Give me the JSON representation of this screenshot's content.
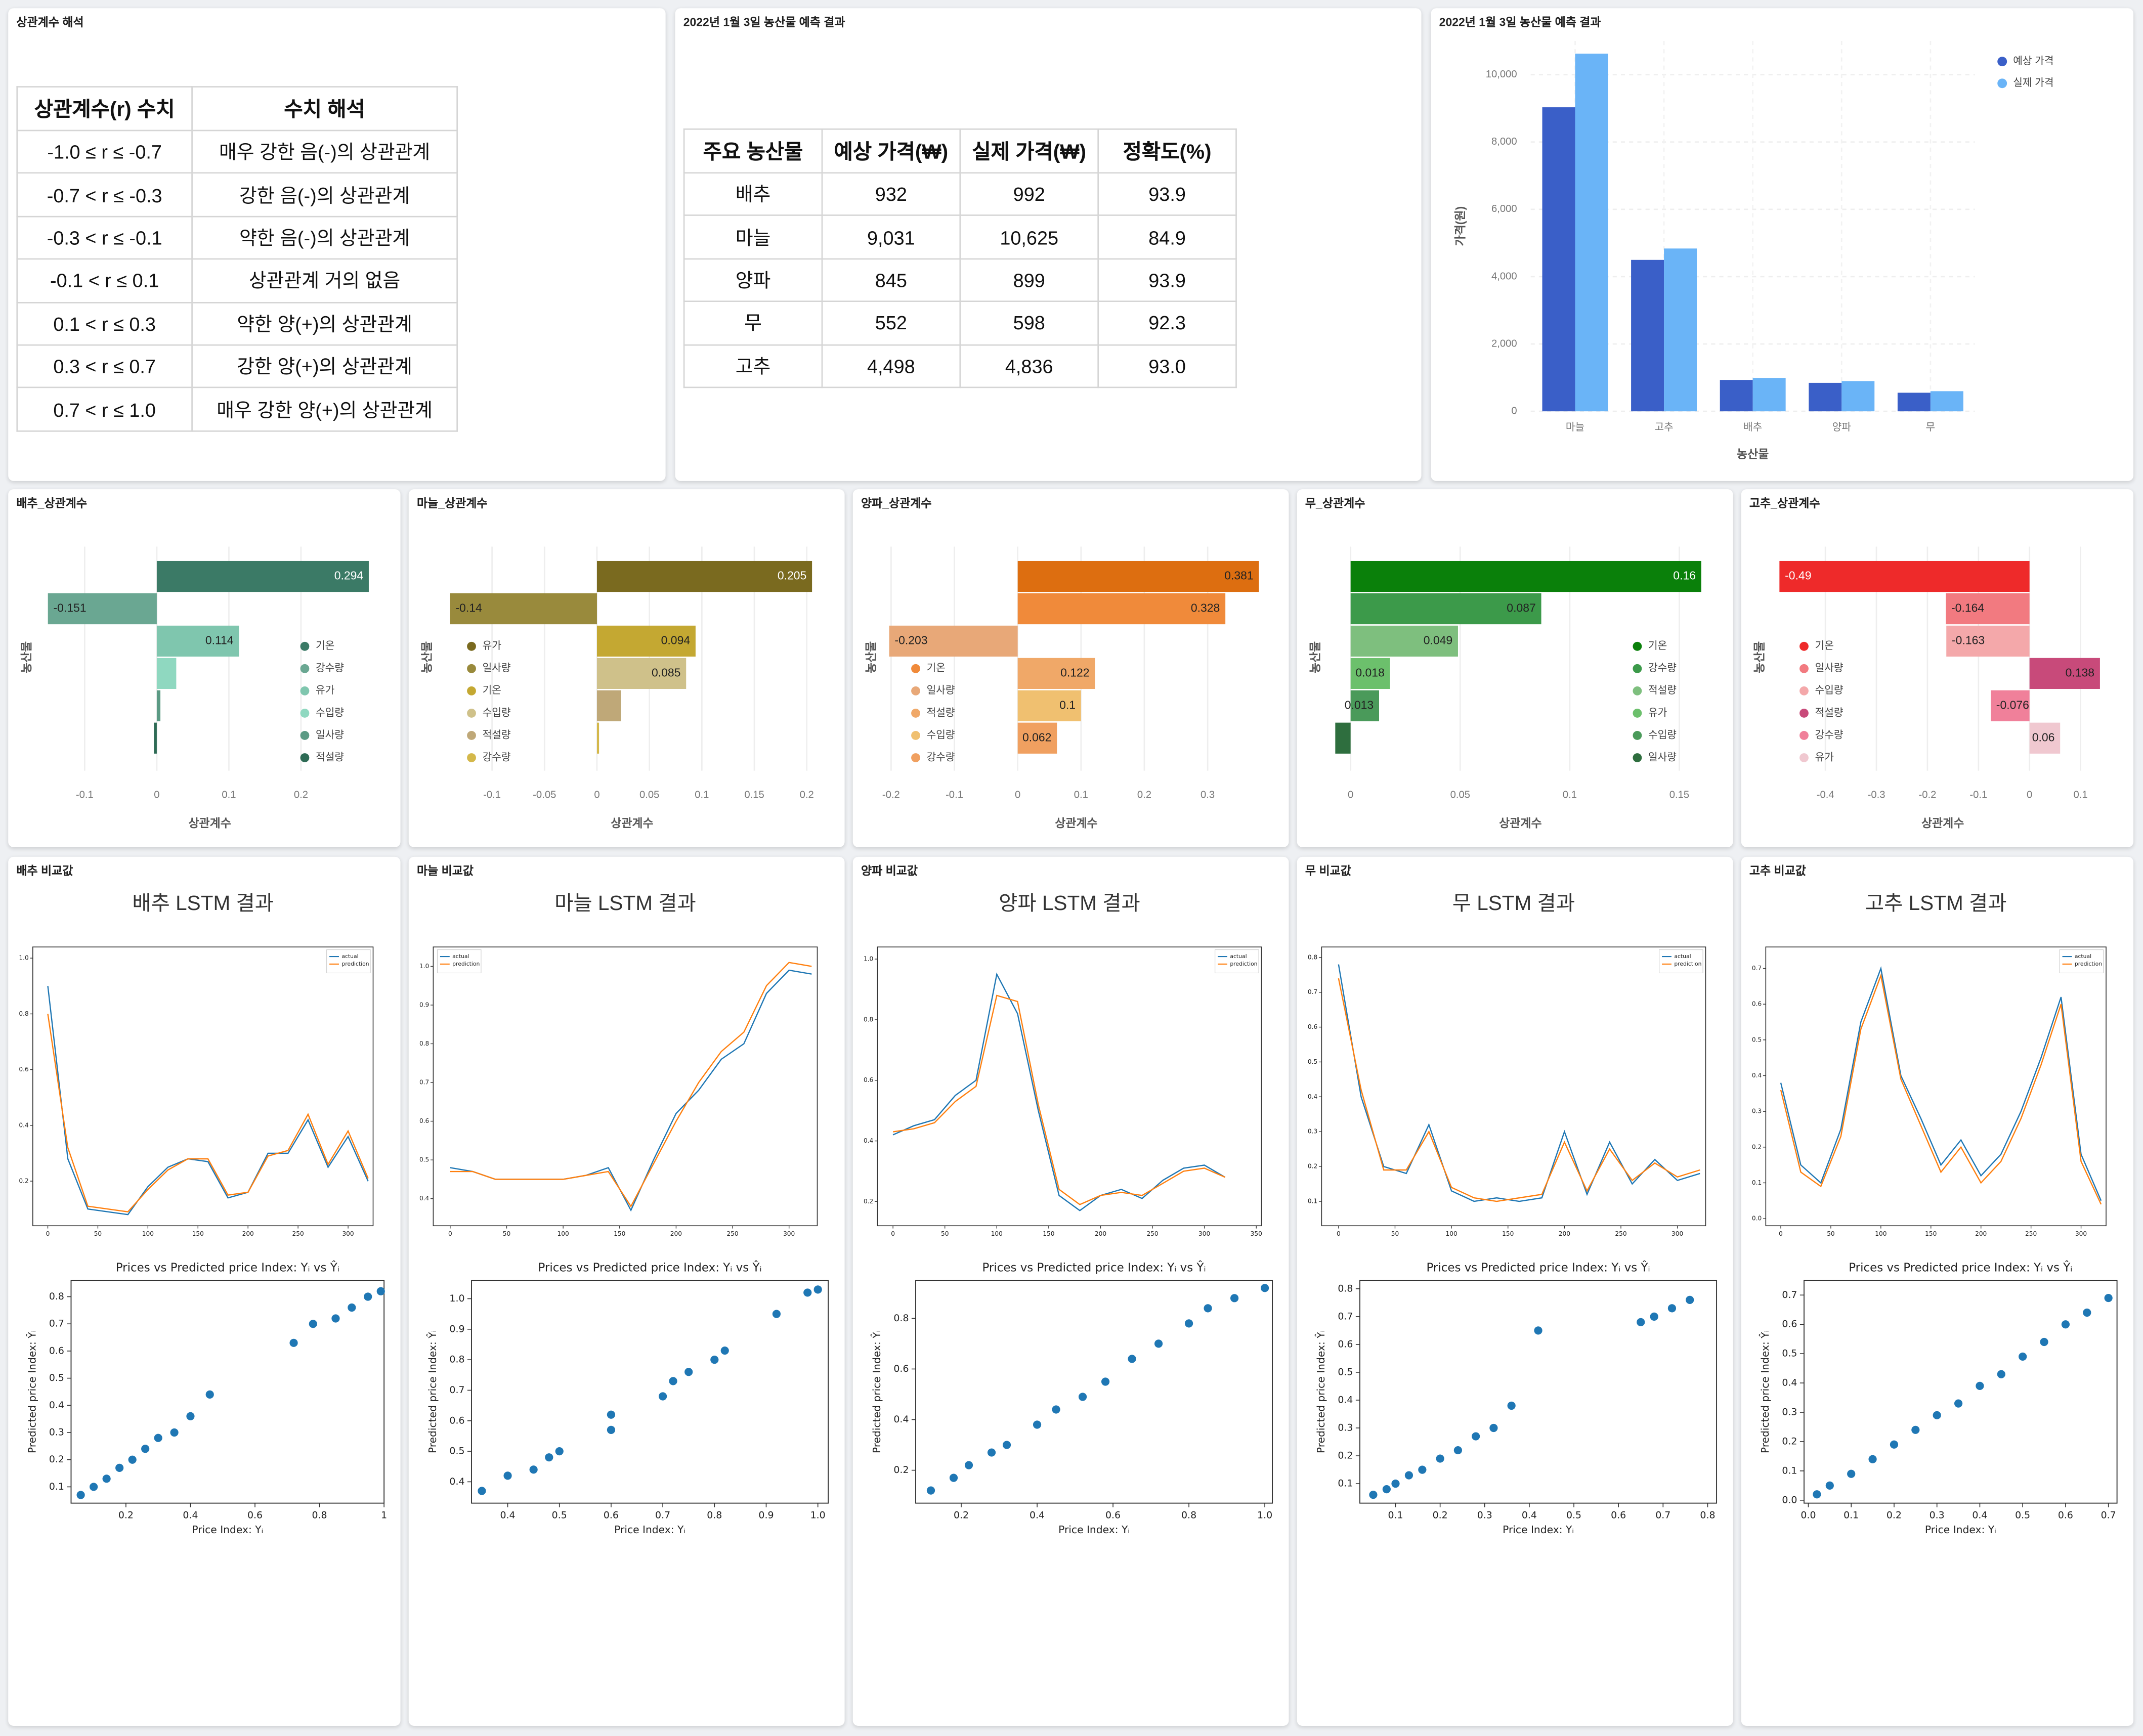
{
  "tables": [
    {
      "title": "상관계수 해석",
      "header": [
        "상관계수(r) 수치",
        "수치 해석"
      ],
      "rows": [
        [
          "-1.0 ≤ r ≤ -0.7",
          "매우 강한 음(-)의 상관관계"
        ],
        [
          "-0.7 < r ≤ -0.3",
          "강한 음(-)의 상관관계"
        ],
        [
          "-0.3 < r ≤ -0.1",
          "약한 음(-)의 상관관계"
        ],
        [
          "-0.1 < r ≤ 0.1",
          "상관관계 거의 없음"
        ],
        [
          "0.1 < r ≤ 0.3",
          "약한 양(+)의 상관관계"
        ],
        [
          "0.3 < r ≤ 0.7",
          "강한 양(+)의 상관관계"
        ],
        [
          "0.7 < r ≤ 1.0",
          "매우 강한 양(+)의 상관관계"
        ]
      ]
    },
    {
      "title": "2022년 1월 3일 농산물 예측 결과",
      "header": [
        "주요 농산물",
        "예상 가격(₩)",
        "실제 가격(₩)",
        "정확도(%)"
      ],
      "rows": [
        [
          "배추",
          "932",
          "992",
          "93.9"
        ],
        [
          "마늘",
          "9,031",
          "10,625",
          "84.9"
        ],
        [
          "양파",
          "845",
          "899",
          "93.9"
        ],
        [
          "무",
          "552",
          "598",
          "92.3"
        ],
        [
          "고추",
          "4,498",
          "4,836",
          "93.0"
        ]
      ]
    }
  ],
  "chart_data": [
    {
      "type": "bar",
      "title": "2022년 1월 3일 농산물 예측 결과",
      "x_label": "농산물",
      "y_label": "가격(원)",
      "categories": [
        "마늘",
        "고추",
        "배추",
        "양파",
        "무"
      ],
      "series": [
        {
          "name": "예상 가격",
          "color": "#3a5fc8",
          "values": [
            9031,
            4498,
            932,
            845,
            552
          ]
        },
        {
          "name": "실제 가격",
          "color": "#6ab4f7",
          "values": [
            10625,
            4836,
            992,
            899,
            598
          ]
        }
      ],
      "ylim": [
        0,
        11000
      ],
      "yticks": [
        0,
        {
          "value": 2000,
          "label": "2,000"
        },
        {
          "value": 4000,
          "label": "4,000"
        },
        {
          "value": 6000,
          "label": "6,000"
        },
        {
          "value": 8000,
          "label": "8,000"
        },
        {
          "value": 10000,
          "label": "10,000"
        }
      ],
      "grid": true,
      "legend": "top right"
    },
    {
      "type": "bar",
      "orientation": "horizontal",
      "title": "배추_상관계수",
      "x_label": "상관계수",
      "y_label": "농산물",
      "legend": "center right",
      "categories": [
        "기온",
        "강수량",
        "유가",
        "수입량",
        "일사량",
        "적설량"
      ],
      "values": [
        0.294,
        -0.151,
        0.114,
        0.027,
        0.005,
        -0.004
      ],
      "value_labels": [
        "0.294",
        "-0.151",
        "0.114",
        null,
        null,
        null
      ],
      "colors": [
        "#3b7a66",
        "#6aa792",
        "#7fc6ae",
        "#8fd8c0",
        "#5b9a84",
        "#2e6b55"
      ],
      "xlim": [
        -0.153,
        0.3
      ],
      "xticks": [
        -0.1,
        0,
        0.1,
        0.2
      ],
      "grid": true
    },
    {
      "type": "bar",
      "orientation": "horizontal",
      "title": "마늘_상관계수",
      "x_label": "상관계수",
      "y_label": "농산물",
      "legend": "center left",
      "categories": [
        "유가",
        "일사량",
        "기온",
        "수입량",
        "적설량",
        "강수량"
      ],
      "values": [
        0.205,
        -0.14,
        0.094,
        0.085,
        0.023,
        0.002
      ],
      "value_labels": [
        "0.205",
        "-0.14",
        "0.094",
        "0.085",
        null,
        null
      ],
      "colors": [
        "#7a6a1f",
        "#998a3c",
        "#c4a832",
        "#cfc18a",
        "#bfa878",
        "#d4b84a"
      ],
      "xlim": [
        -0.143,
        0.21
      ],
      "xticks": [
        -0.1,
        -0.05,
        0,
        0.05,
        0.1,
        0.15,
        0.2
      ],
      "grid": true
    },
    {
      "type": "bar",
      "orientation": "horizontal",
      "title": "양파_상관계수",
      "x_label": "상관계수",
      "y_label": "농산물",
      "legend": "center left",
      "categories": [
        "유가",
        "기온",
        "일사량",
        "적설량",
        "수입량",
        "강수량"
      ],
      "values": [
        0.381,
        0.328,
        -0.203,
        0.122,
        0.1,
        0.062
      ],
      "value_labels": [
        "0.381",
        "0.328",
        "-0.203",
        "0.122",
        "0.1",
        "0.062"
      ],
      "colors": [
        "#dd6e10",
        "#f08a3a",
        "#e8a878",
        "#f0a868",
        "#f0c070",
        "#f0a060"
      ],
      "xlim": [
        -0.2,
        0.385
      ],
      "xticks": [
        -0.2,
        -0.1,
        0,
        0.1,
        0.2,
        0.3
      ],
      "grid": true
    },
    {
      "type": "bar",
      "orientation": "horizontal",
      "title": "무_상관계수",
      "x_label": "상관계수",
      "y_label": "농산물",
      "legend": "center right",
      "categories": [
        "기온",
        "강수량",
        "적설량",
        "유가",
        "수입량",
        "일사량"
      ],
      "values": [
        0.16,
        0.087,
        0.049,
        0.018,
        0.013,
        -0.007
      ],
      "value_labels": [
        "0.16",
        "0.087",
        "0.049",
        "0.018",
        "0.013",
        null
      ],
      "colors": [
        "#0a800a",
        "#3c9a4a",
        "#7ebf7e",
        "#6cc06c",
        "#4a9a5a",
        "#2e6e3e"
      ],
      "xlim": [
        -0.007,
        0.162
      ],
      "xticks": [
        0,
        0.05,
        0.1,
        0.15
      ],
      "grid": true
    },
    {
      "type": "bar",
      "orientation": "horizontal",
      "title": "고추_상관계수",
      "x_label": "상관계수",
      "y_label": "농산물",
      "legend": "center left",
      "categories": [
        "기온",
        "일사량",
        "수입량",
        "적설량",
        "강수량",
        "유가"
      ],
      "values": [
        -0.49,
        -0.164,
        -0.163,
        0.138,
        -0.076,
        0.06
      ],
      "value_labels": [
        "-0.49",
        "-0.164",
        "-0.163",
        "0.138",
        "-0.076",
        "0.06"
      ],
      "colors": [
        "#ee2a2a",
        "#f27a80",
        "#f4a8aa",
        "#c84a7a",
        "#f0809a",
        "#f0c8d0"
      ],
      "xlim": [
        -0.49,
        0.15
      ],
      "xticks": [
        -0.4,
        -0.3,
        -0.2,
        -0.1,
        0,
        0.1
      ],
      "grid": true
    },
    {
      "type": "line",
      "panel_title": "배추 비교값",
      "title": "배추 LSTM 결과",
      "x": [
        0,
        20,
        40,
        60,
        80,
        100,
        120,
        140,
        160,
        180,
        200,
        220,
        240,
        260,
        280,
        300,
        320
      ],
      "series": [
        {
          "name": "actual",
          "color": "#1f77b4",
          "values": [
            0.9,
            0.28,
            0.1,
            0.09,
            0.08,
            0.18,
            0.25,
            0.28,
            0.27,
            0.14,
            0.16,
            0.3,
            0.3,
            0.42,
            0.25,
            0.36,
            0.2
          ]
        },
        {
          "name": "prediction",
          "color": "#ff7f0e",
          "values": [
            0.8,
            0.32,
            0.11,
            0.1,
            0.09,
            0.17,
            0.24,
            0.28,
            0.28,
            0.15,
            0.16,
            0.29,
            0.31,
            0.44,
            0.26,
            0.38,
            0.21
          ]
        }
      ],
      "xlim": [
        -15,
        325
      ],
      "xticks": [
        0,
        50,
        100,
        150,
        200,
        250,
        300
      ],
      "ylim": [
        0.04,
        1.04
      ],
      "yticks": [
        0.2,
        0.4,
        0.6,
        0.8,
        {
          "value": 1,
          "label": "1.0"
        }
      ],
      "legend": "top right"
    },
    {
      "type": "line",
      "panel_title": "마늘 비교값",
      "title": "마늘 LSTM 결과",
      "x": [
        0,
        20,
        40,
        60,
        80,
        100,
        120,
        140,
        160,
        180,
        200,
        220,
        240,
        260,
        280,
        300,
        320
      ],
      "series": [
        {
          "name": "actual",
          "color": "#1f77b4",
          "values": [
            0.48,
            0.47,
            0.45,
            0.45,
            0.45,
            0.45,
            0.46,
            0.48,
            0.37,
            0.5,
            0.62,
            0.68,
            0.76,
            0.8,
            0.93,
            0.99,
            0.98
          ]
        },
        {
          "name": "prediction",
          "color": "#ff7f0e",
          "values": [
            0.47,
            0.47,
            0.45,
            0.45,
            0.45,
            0.45,
            0.46,
            0.47,
            0.38,
            0.49,
            0.6,
            0.7,
            0.78,
            0.83,
            0.95,
            1.01,
            1.0
          ]
        }
      ],
      "xlim": [
        -15,
        325
      ],
      "xticks": [
        0,
        50,
        100,
        150,
        200,
        250,
        300
      ],
      "ylim": [
        0.33,
        1.05
      ],
      "yticks": [
        0.4,
        0.5,
        0.6,
        0.7,
        0.8,
        0.9,
        {
          "value": 1,
          "label": "1.0"
        }
      ],
      "legend": "top left"
    },
    {
      "type": "line",
      "panel_title": "양파 비교값",
      "title": "양파 LSTM 결과",
      "x": [
        0,
        20,
        40,
        60,
        80,
        100,
        120,
        140,
        160,
        180,
        200,
        220,
        240,
        260,
        280,
        300,
        320
      ],
      "series": [
        {
          "name": "actual",
          "color": "#1f77b4",
          "values": [
            0.42,
            0.45,
            0.47,
            0.55,
            0.6,
            0.95,
            0.82,
            0.5,
            0.22,
            0.17,
            0.22,
            0.24,
            0.21,
            0.27,
            0.31,
            0.32,
            0.28
          ]
        },
        {
          "name": "prediction",
          "color": "#ff7f0e",
          "values": [
            0.43,
            0.44,
            0.46,
            0.53,
            0.58,
            0.88,
            0.86,
            0.52,
            0.24,
            0.19,
            0.22,
            0.23,
            0.22,
            0.26,
            0.3,
            0.31,
            0.28
          ]
        }
      ],
      "xlim": [
        -15,
        355
      ],
      "xticks": [
        0,
        50,
        100,
        150,
        200,
        250,
        300,
        350
      ],
      "ylim": [
        0.12,
        1.04
      ],
      "yticks": [
        0.2,
        0.4,
        0.6,
        0.8,
        {
          "value": 1,
          "label": "1.0"
        }
      ],
      "legend": "top right"
    },
    {
      "type": "line",
      "panel_title": "무 비교값",
      "title": "무 LSTM 결과",
      "x": [
        0,
        20,
        40,
        60,
        80,
        100,
        120,
        140,
        160,
        180,
        200,
        220,
        240,
        260,
        280,
        300,
        320
      ],
      "series": [
        {
          "name": "actual",
          "color": "#1f77b4",
          "values": [
            0.78,
            0.4,
            0.2,
            0.18,
            0.32,
            0.13,
            0.1,
            0.11,
            0.1,
            0.11,
            0.3,
            0.12,
            0.27,
            0.15,
            0.22,
            0.16,
            0.18
          ]
        },
        {
          "name": "prediction",
          "color": "#ff7f0e",
          "values": [
            0.74,
            0.42,
            0.19,
            0.19,
            0.3,
            0.14,
            0.11,
            0.1,
            0.11,
            0.12,
            0.27,
            0.13,
            0.25,
            0.16,
            0.21,
            0.17,
            0.19
          ]
        }
      ],
      "xlim": [
        -15,
        325
      ],
      "xticks": [
        0,
        50,
        100,
        150,
        200,
        250,
        300
      ],
      "ylim": [
        0.03,
        0.83
      ],
      "yticks": [
        0.1,
        0.2,
        0.3,
        0.4,
        0.5,
        0.6,
        0.7,
        0.8
      ],
      "legend": "top right"
    },
    {
      "type": "line",
      "panel_title": "고추 비교값",
      "title": "고추 LSTM 결과",
      "x": [
        0,
        20,
        40,
        60,
        80,
        100,
        120,
        140,
        160,
        180,
        200,
        220,
        240,
        260,
        280,
        300,
        320
      ],
      "series": [
        {
          "name": "actual",
          "color": "#1f77b4",
          "values": [
            0.38,
            0.15,
            0.1,
            0.25,
            0.55,
            0.7,
            0.4,
            0.28,
            0.15,
            0.22,
            0.12,
            0.18,
            0.3,
            0.45,
            0.62,
            0.18,
            0.05
          ]
        },
        {
          "name": "prediction",
          "color": "#ff7f0e",
          "values": [
            0.36,
            0.13,
            0.09,
            0.23,
            0.53,
            0.68,
            0.39,
            0.26,
            0.13,
            0.2,
            0.1,
            0.16,
            0.28,
            0.43,
            0.6,
            0.16,
            0.04
          ]
        }
      ],
      "xlim": [
        -15,
        325
      ],
      "xticks": [
        0,
        50,
        100,
        150,
        200,
        250,
        300
      ],
      "ylim": [
        -0.02,
        0.76
      ],
      "yticks": [
        {
          "value": 0,
          "label": "0.0"
        },
        0.1,
        0.2,
        0.3,
        0.4,
        0.5,
        0.6,
        0.7
      ],
      "legend": "top right"
    },
    {
      "type": "scatter",
      "title": "Prices vs Predicted price Index: Yᵢ vs Ŷᵢ",
      "x_label": "Price Index: Yᵢ",
      "y_label": "Predicted price Index: Ŷᵢ",
      "color": "#1f77b4",
      "x": [
        0.06,
        0.1,
        0.14,
        0.18,
        0.22,
        0.26,
        0.3,
        0.35,
        0.4,
        0.46,
        0.72,
        0.78,
        0.85,
        0.9,
        0.95,
        0.99
      ],
      "values": [
        0.07,
        0.1,
        0.13,
        0.17,
        0.2,
        0.24,
        0.28,
        0.3,
        0.36,
        0.44,
        0.63,
        0.7,
        0.72,
        0.76,
        0.8,
        0.82
      ],
      "xlim": [
        0.03,
        1.0
      ],
      "xticks": [
        0.2,
        0.4,
        0.6,
        0.8,
        1
      ],
      "ylim": [
        0.04,
        0.86
      ],
      "yticks": [
        0.1,
        0.2,
        0.3,
        0.4,
        0.5,
        0.6,
        0.7,
        0.8
      ]
    },
    {
      "type": "scatter",
      "title": "Prices vs Predicted price Index: Yᵢ vs Ŷᵢ",
      "x_label": "Price Index: Yᵢ",
      "y_label": "Predicted price Index: Ŷᵢ",
      "color": "#1f77b4",
      "x": [
        0.35,
        0.4,
        0.45,
        0.48,
        0.5,
        0.6,
        0.6,
        0.7,
        0.72,
        0.75,
        0.8,
        0.82,
        0.92,
        0.98,
        1.0
      ],
      "values": [
        0.37,
        0.42,
        0.44,
        0.48,
        0.5,
        0.57,
        0.62,
        0.68,
        0.73,
        0.76,
        0.8,
        0.83,
        0.95,
        1.02,
        1.03
      ],
      "xlim": [
        0.33,
        1.02
      ],
      "xticks": [
        0.4,
        0.5,
        0.6,
        0.7,
        0.8,
        0.9,
        {
          "value": 1,
          "label": "1.0"
        }
      ],
      "ylim": [
        0.33,
        1.06
      ],
      "yticks": [
        0.4,
        0.5,
        0.6,
        0.7,
        0.8,
        0.9,
        {
          "value": 1,
          "label": "1.0"
        }
      ]
    },
    {
      "type": "scatter",
      "title": "Prices vs Predicted price Index: Yᵢ vs Ŷᵢ",
      "x_label": "Price Index: Yᵢ",
      "y_label": "Predicted price Index: Ŷᵢ",
      "color": "#1f77b4",
      "x": [
        0.12,
        0.18,
        0.22,
        0.28,
        0.32,
        0.4,
        0.45,
        0.52,
        0.58,
        0.65,
        0.72,
        0.8,
        0.85,
        0.92,
        1.0
      ],
      "values": [
        0.12,
        0.17,
        0.22,
        0.27,
        0.3,
        0.38,
        0.44,
        0.49,
        0.55,
        0.64,
        0.7,
        0.78,
        0.84,
        0.88,
        0.92
      ],
      "xlim": [
        0.08,
        1.02
      ],
      "xticks": [
        0.2,
        0.4,
        0.6,
        0.8,
        {
          "value": 1,
          "label": "1.0"
        }
      ],
      "ylim": [
        0.07,
        0.95
      ],
      "yticks": [
        0.2,
        0.4,
        0.6,
        0.8
      ]
    },
    {
      "type": "scatter",
      "title": "Prices vs Predicted price Index: Yᵢ vs Ŷᵢ",
      "x_label": "Price Index: Yᵢ",
      "y_label": "Predicted price Index: Ŷᵢ",
      "color": "#1f77b4",
      "x": [
        0.05,
        0.08,
        0.1,
        0.13,
        0.16,
        0.2,
        0.24,
        0.28,
        0.32,
        0.36,
        0.42,
        0.65,
        0.68,
        0.72,
        0.76
      ],
      "values": [
        0.06,
        0.08,
        0.1,
        0.13,
        0.15,
        0.19,
        0.22,
        0.27,
        0.3,
        0.38,
        0.65,
        0.68,
        0.7,
        0.73,
        0.76
      ],
      "xlim": [
        0.02,
        0.82
      ],
      "xticks": [
        0.1,
        0.2,
        0.3,
        0.4,
        0.5,
        0.6,
        0.7,
        0.8
      ],
      "ylim": [
        0.03,
        0.83
      ],
      "yticks": [
        0.1,
        0.2,
        0.3,
        0.4,
        0.5,
        0.6,
        0.7,
        0.8
      ]
    },
    {
      "type": "scatter",
      "title": "Prices vs Predicted price Index: Yᵢ vs Ŷᵢ",
      "x_label": "Price Index: Yᵢ",
      "y_label": "Predicted price Index: Ŷᵢ",
      "color": "#1f77b4",
      "x": [
        0.02,
        0.05,
        0.1,
        0.15,
        0.2,
        0.25,
        0.3,
        0.35,
        0.4,
        0.45,
        0.5,
        0.55,
        0.6,
        0.65,
        0.7
      ],
      "values": [
        0.02,
        0.05,
        0.09,
        0.14,
        0.19,
        0.24,
        0.29,
        0.33,
        0.39,
        0.43,
        0.49,
        0.54,
        0.6,
        0.64,
        0.69
      ],
      "xlim": [
        -0.01,
        0.72
      ],
      "xticks": [
        {
          "value": 0,
          "label": "0.0"
        },
        0.1,
        0.2,
        0.3,
        0.4,
        0.5,
        0.6,
        0.7
      ],
      "ylim": [
        -0.01,
        0.75
      ],
      "yticks": [
        {
          "value": 0,
          "label": "0.0"
        },
        0.1,
        0.2,
        0.3,
        0.4,
        0.5,
        0.6,
        0.7
      ]
    }
  ]
}
